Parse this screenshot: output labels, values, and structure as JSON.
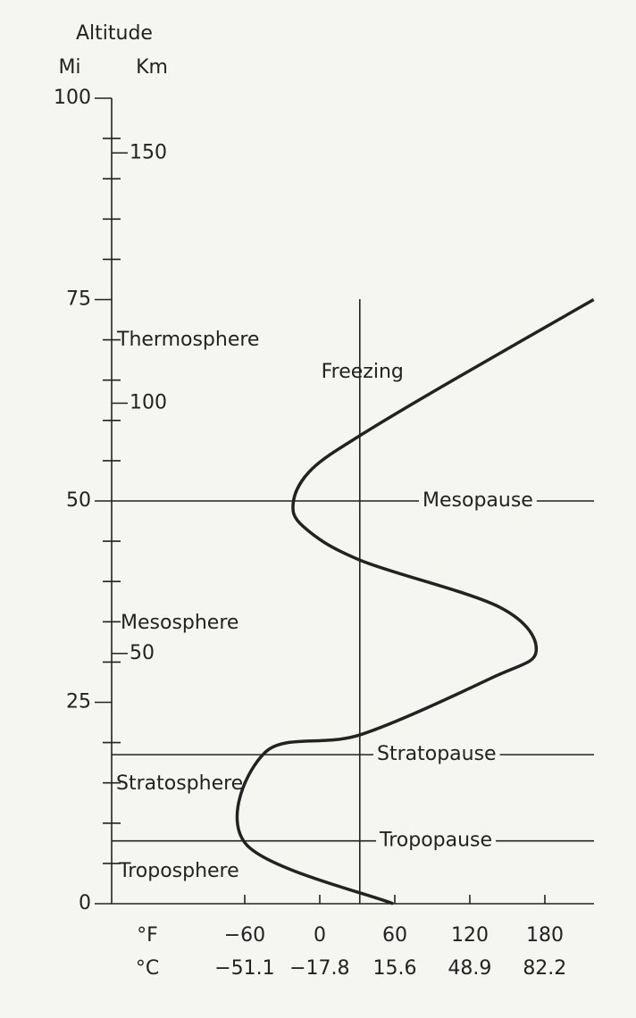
{
  "chart_data": {
    "type": "line",
    "title": "Altitude",
    "ylabel": "Mi",
    "y2label": "Km",
    "xlabel": "°F",
    "x2label": "°C",
    "xlim": [
      -166.4,
      219.3
    ],
    "xticks": [
      {
        "value": -60,
        "label": "−60"
      },
      0,
      60,
      120,
      180
    ],
    "x2lim": [
      -110.2,
      104.1
    ],
    "x2ticks": [
      {
        "value": -51.1,
        "label": "−51.1"
      },
      {
        "value": -17.8,
        "label": "−17.8"
      },
      15.6,
      48.9,
      82.2
    ],
    "ylim": [
      0,
      100
    ],
    "yticks": [
      0,
      25,
      50,
      75,
      100
    ],
    "yminorticks": [
      5,
      10,
      15,
      20,
      30,
      35,
      40,
      45,
      55,
      60,
      65,
      70,
      80,
      85,
      90,
      95
    ],
    "y2lim": [
      0,
      160.93
    ],
    "y2ticks": [
      50,
      100,
      150
    ],
    "series": [
      {
        "color": "#222222",
        "x": [
          58.6,
          -59,
          -43.6,
          33,
          137,
          173,
          144,
          33,
          -13,
          -21,
          -6,
          33,
          101,
          219
        ],
        "values": [
          0,
          7.4,
          18.8,
          21,
          28,
          31.3,
          36.8,
          42.6,
          46.8,
          50,
          54,
          58.2,
          64.5,
          75
        ]
      }
    ],
    "hlines": [
      {
        "label": "Mesopause",
        "value": 50
      },
      {
        "label": "Stratopause",
        "value": 18.5
      },
      {
        "label": "Tropopause",
        "value": 7.8
      }
    ],
    "vlines": [
      {
        "label": "Freezing",
        "value": 32
      }
    ],
    "annotations": [
      "Thermosphere",
      "Mesosphere",
      "Stratosphere",
      "Troposphere"
    ]
  }
}
